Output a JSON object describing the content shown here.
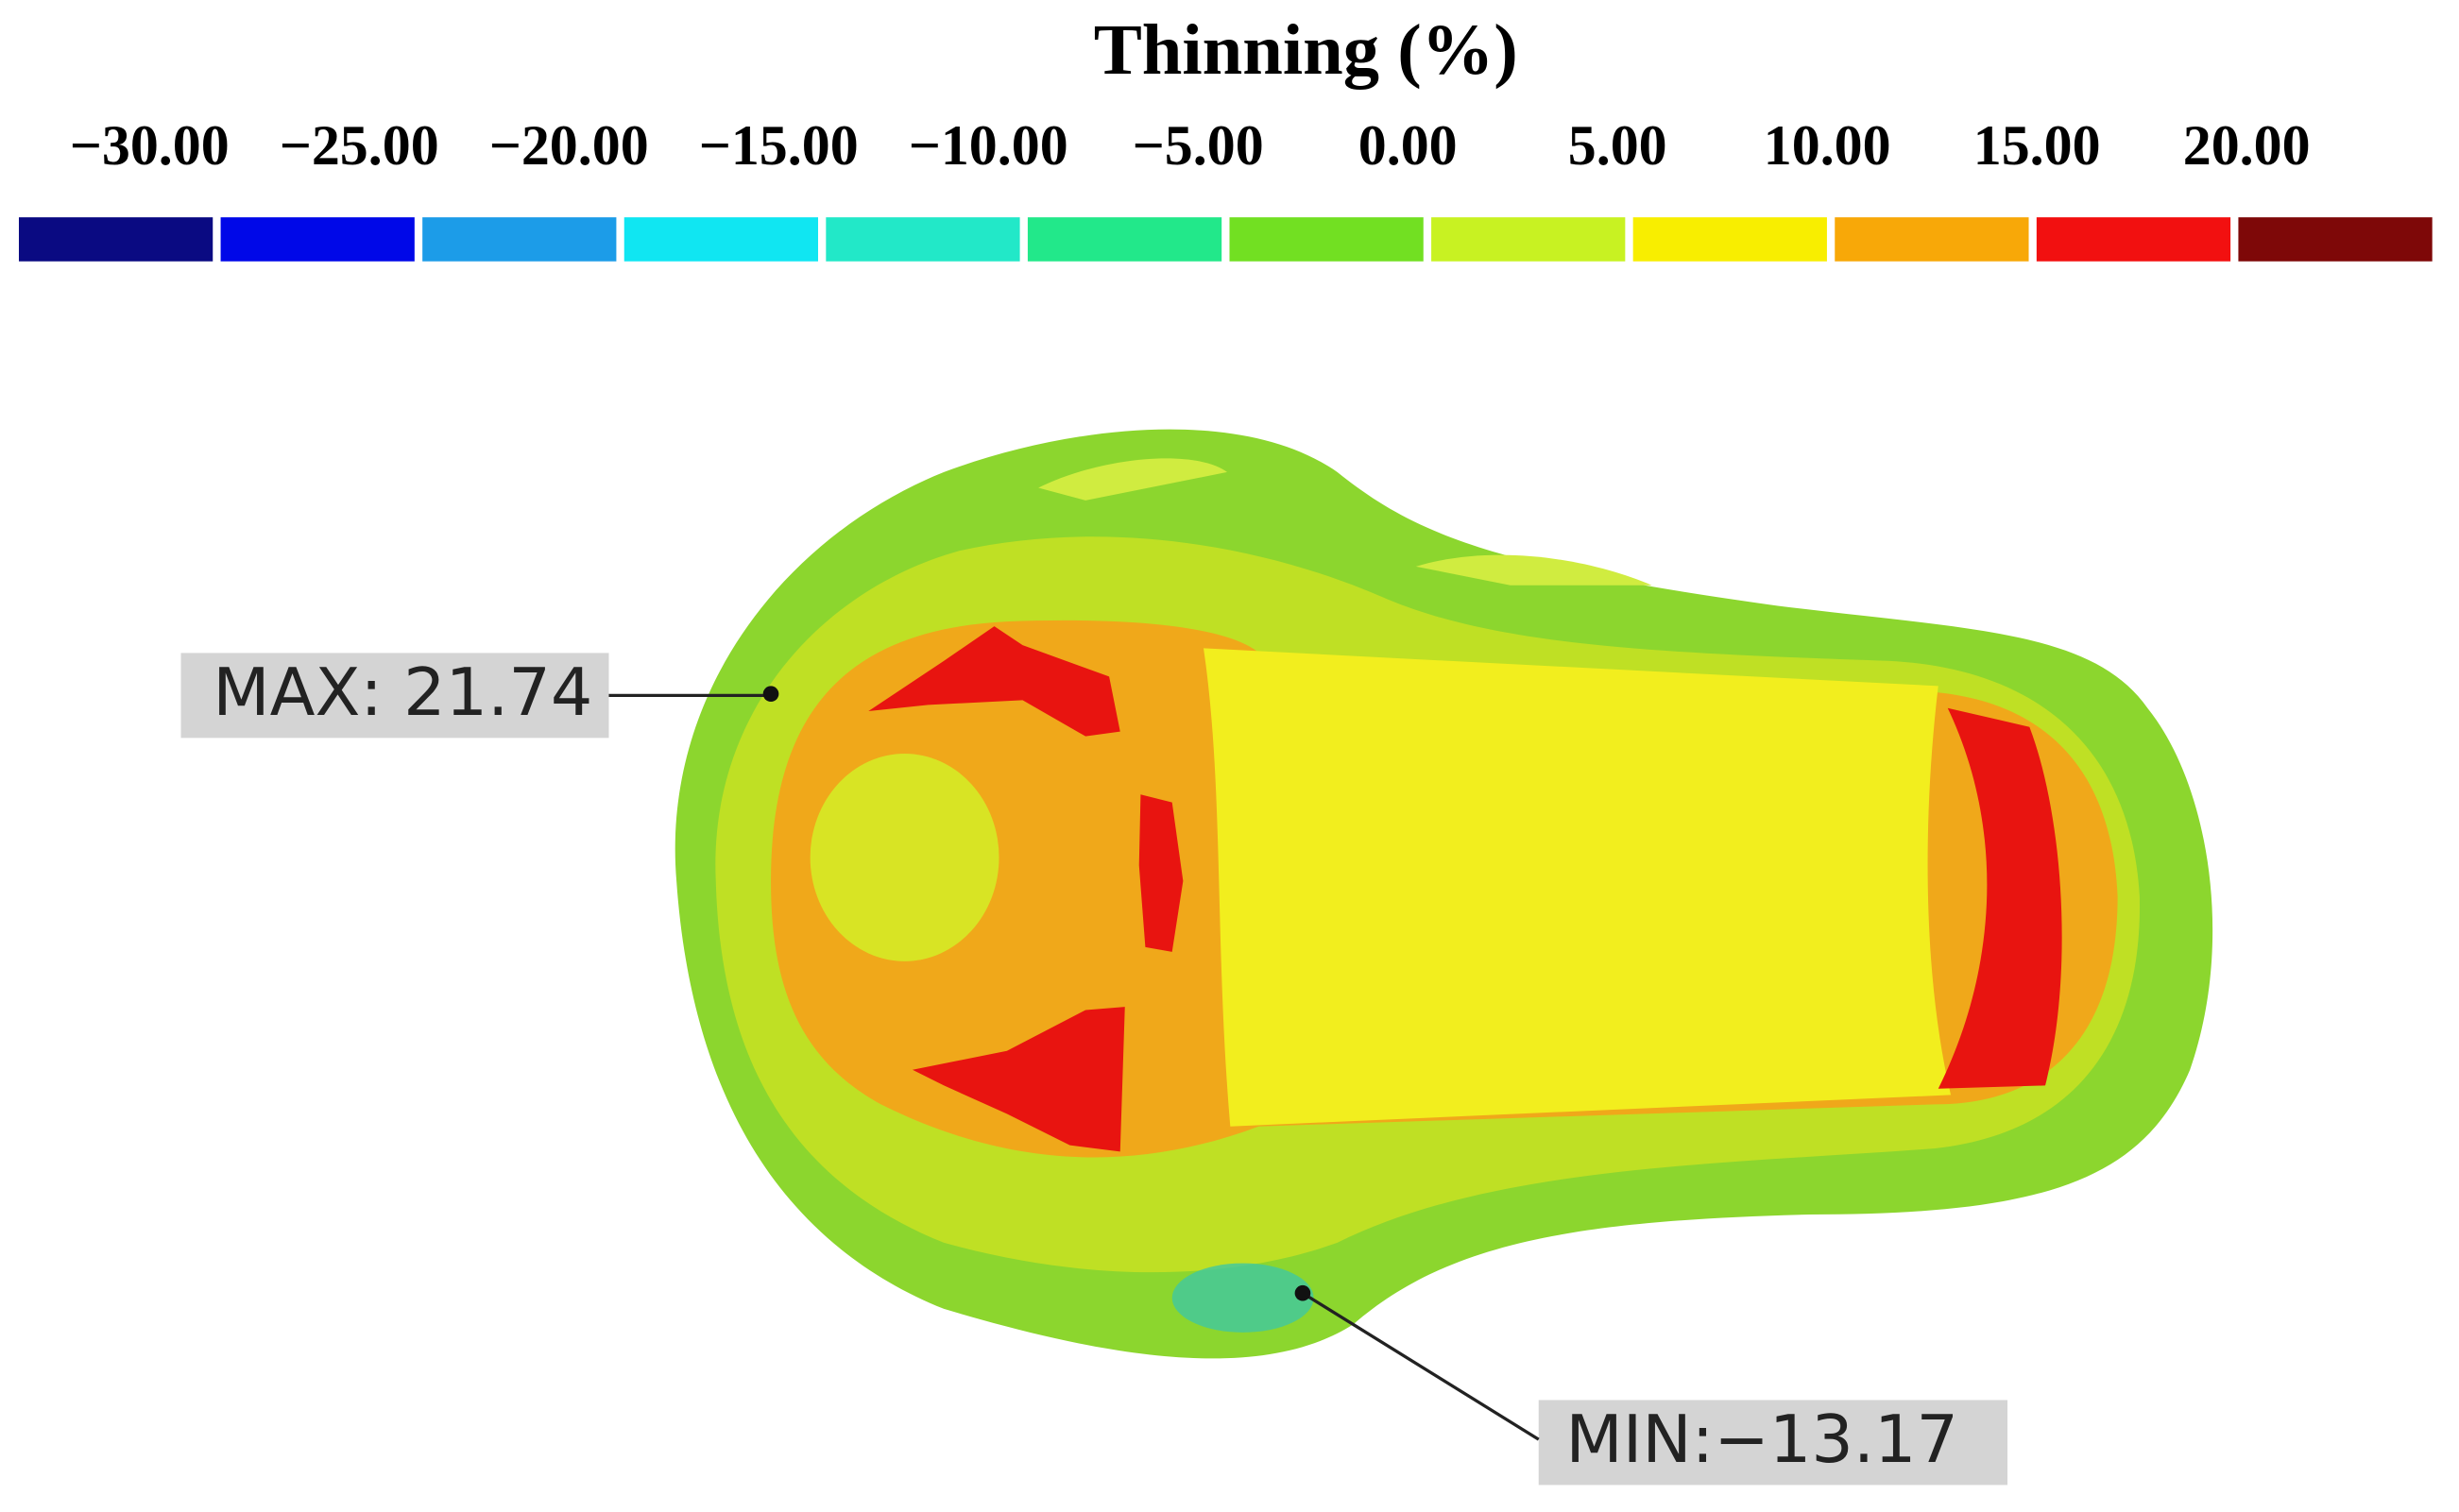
{
  "title": "Thinning (%)",
  "colorbar": {
    "labels": [
      "−30.00",
      "−25.00",
      "−20.00",
      "−15.00",
      "−10.00",
      "−5.00",
      "0.00",
      "5.00",
      "10.00",
      "15.00",
      "20.00"
    ],
    "colors": [
      "#0a0a82",
      "#0008e8",
      "#1c9ce8",
      "#10e6f2",
      "#22e8c8",
      "#22e88a",
      "#72e022",
      "#c8f222",
      "#f8ee00",
      "#f8a808",
      "#f21010",
      "#7e0808"
    ]
  },
  "annotations": {
    "max": "MAX: 21.74",
    "min": "MIN:−13.17"
  }
}
